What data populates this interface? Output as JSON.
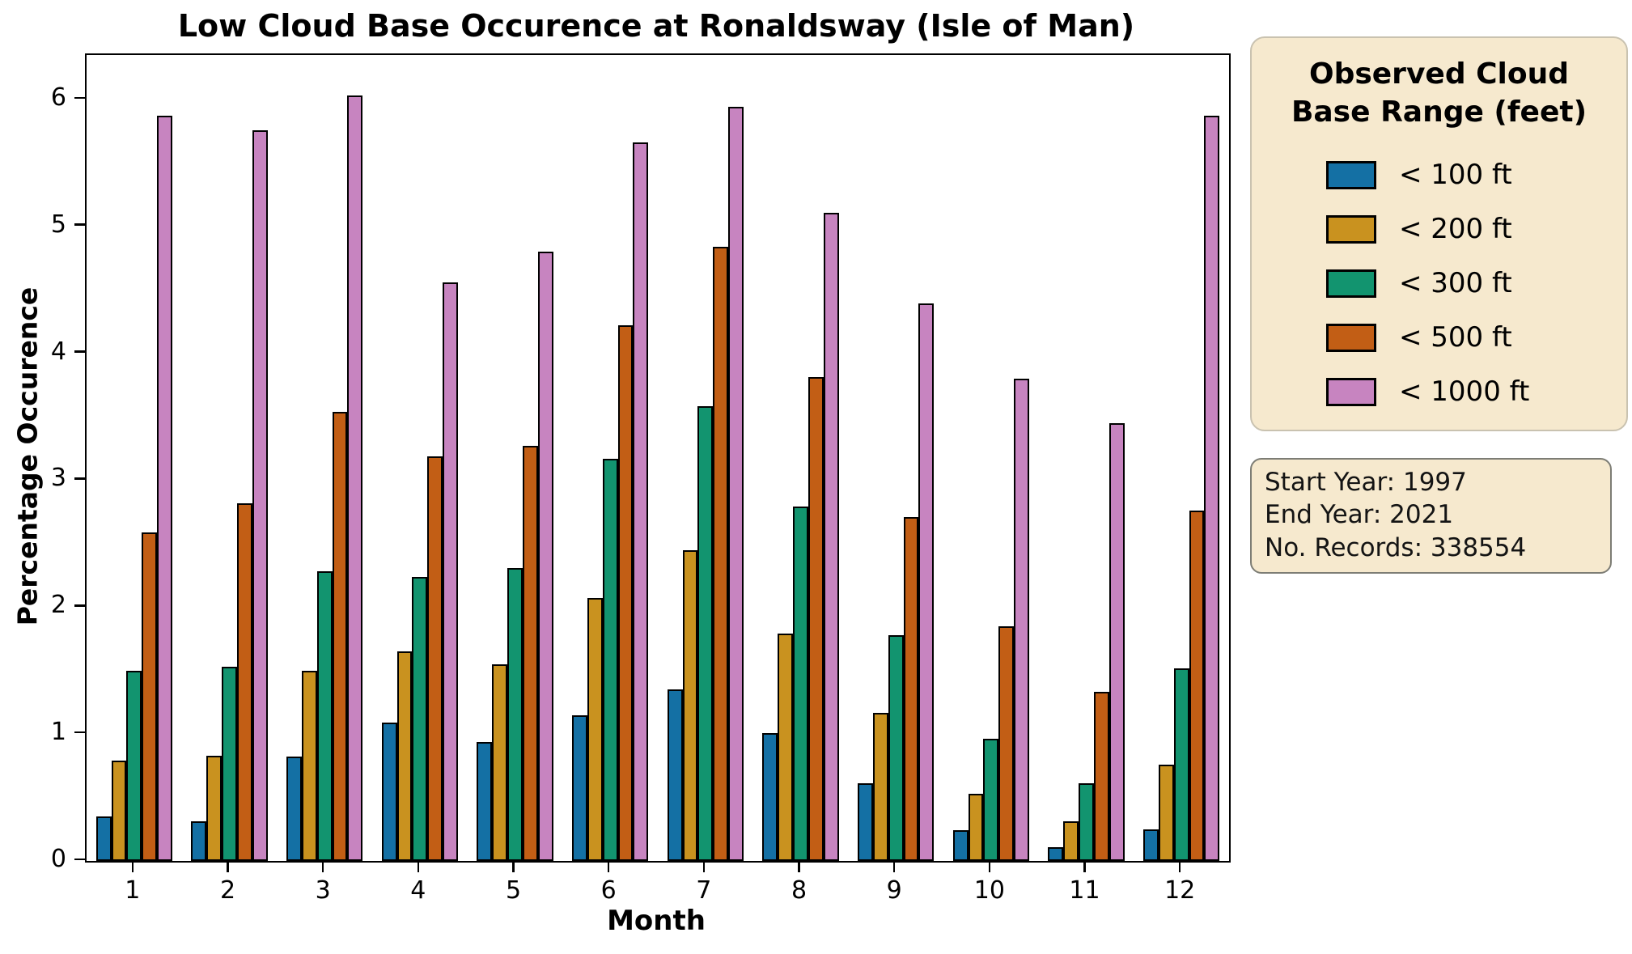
{
  "title": "Low Cloud Base Occurence at Ronaldsway (Isle of Man)",
  "axes": {
    "xlabel": "Month",
    "ylabel": "Percentage Occurence",
    "x_tick_labels": [
      "1",
      "2",
      "3",
      "4",
      "5",
      "6",
      "7",
      "8",
      "9",
      "10",
      "11",
      "12"
    ],
    "y_tick_labels": [
      "0",
      "1",
      "2",
      "3",
      "4",
      "5",
      "6"
    ]
  },
  "legend": {
    "title_line1": "Observed Cloud",
    "title_line2": "Base Range (feet)",
    "items": [
      {
        "label": "< 100 ft",
        "color": "#1470a4"
      },
      {
        "label": "< 200 ft",
        "color": "#c9921f"
      },
      {
        "label": "< 300 ft",
        "color": "#12946f"
      },
      {
        "label": "< 500 ft",
        "color": "#c25e15"
      },
      {
        "label": "< 1000 ft",
        "color": "#c784c0"
      }
    ]
  },
  "info_box": {
    "lines": [
      "Start Year: 1997",
      "End Year: 2021",
      "No. Records: 338554"
    ]
  },
  "chart_data": {
    "type": "bar",
    "title": "Low Cloud Base Occurence at Ronaldsway (Isle of Man)",
    "xlabel": "Month",
    "ylabel": "Percentage Occurence",
    "categories": [
      1,
      2,
      3,
      4,
      5,
      6,
      7,
      8,
      9,
      10,
      11,
      12
    ],
    "series": [
      {
        "name": "< 100 ft",
        "color": "#1470a4",
        "values": [
          0.35,
          0.31,
          0.82,
          1.09,
          0.94,
          1.15,
          1.35,
          1.01,
          0.61,
          0.24,
          0.11,
          0.25
        ]
      },
      {
        "name": "< 200 ft",
        "color": "#c9921f",
        "values": [
          0.79,
          0.83,
          1.5,
          1.65,
          1.55,
          2.07,
          2.45,
          1.79,
          1.17,
          0.53,
          0.31,
          0.76
        ]
      },
      {
        "name": "< 300 ft",
        "color": "#12946f",
        "values": [
          1.5,
          1.53,
          2.28,
          2.24,
          2.31,
          3.17,
          3.58,
          2.79,
          1.78,
          0.96,
          0.61,
          1.52
        ]
      },
      {
        "name": "< 500 ft",
        "color": "#c25e15",
        "values": [
          2.59,
          2.82,
          3.54,
          3.19,
          3.27,
          4.22,
          4.84,
          3.81,
          2.71,
          1.85,
          1.33,
          2.76
        ]
      },
      {
        "name": "< 1000 ft",
        "color": "#c784c0",
        "values": [
          5.87,
          5.76,
          6.03,
          4.56,
          4.8,
          5.66,
          5.94,
          5.11,
          4.39,
          3.8,
          3.45,
          5.87
        ]
      }
    ],
    "ylim": [
      0,
      6.35
    ],
    "y_ticks": [
      0,
      1,
      2,
      3,
      4,
      5,
      6
    ],
    "bar_edge_color": "#000000",
    "grid": false,
    "legend_title": "Observed Cloud Base Range (feet)",
    "legend_position": "outside-right"
  }
}
